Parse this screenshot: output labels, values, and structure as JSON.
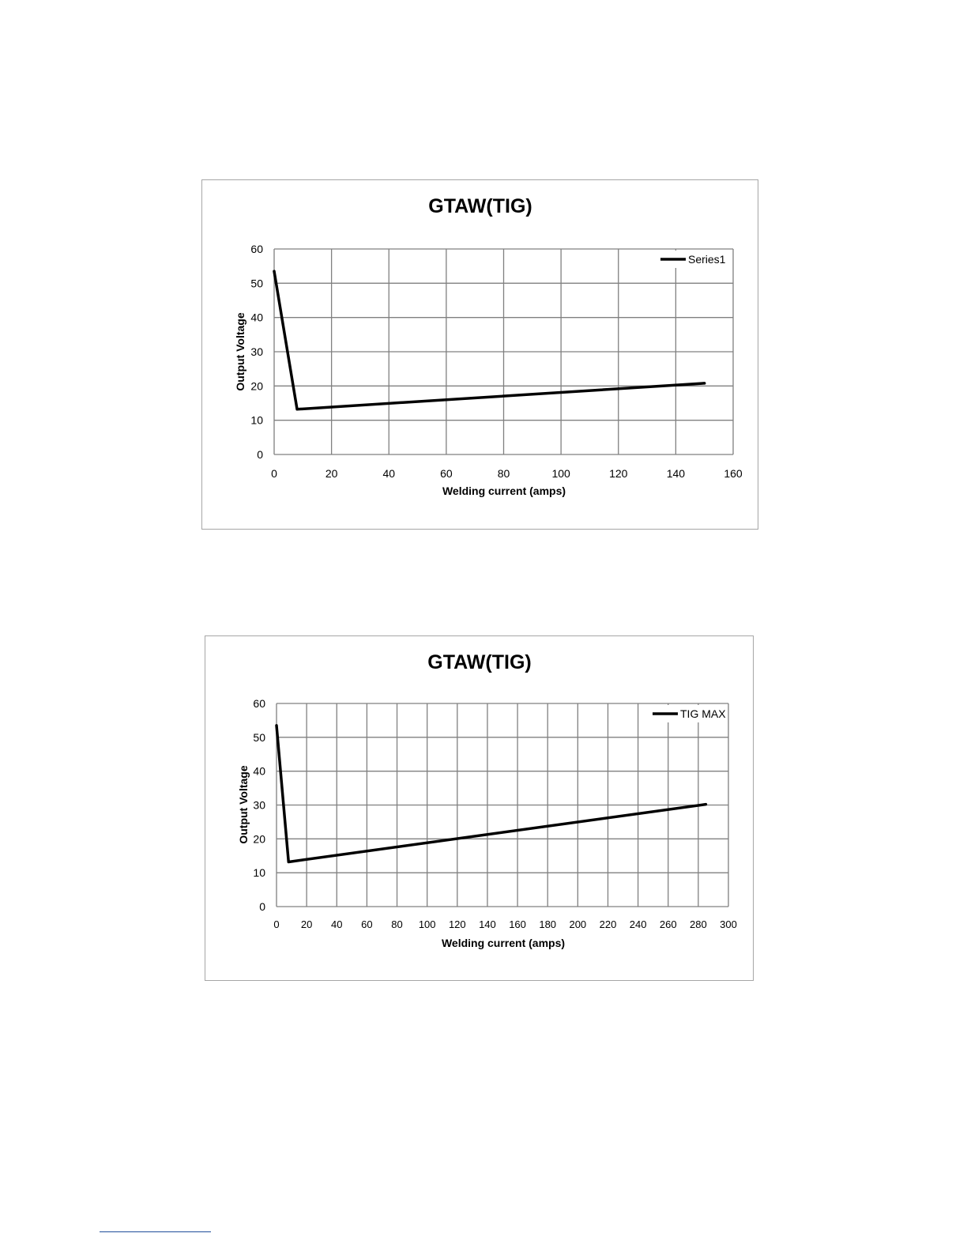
{
  "chart_data": [
    {
      "type": "line",
      "title": "GTAW(TIG)",
      "xlabel": "Welding current (amps)",
      "ylabel": "Output Voltage",
      "xlim": [
        0,
        160
      ],
      "ylim": [
        0,
        60
      ],
      "x_ticks": [
        0,
        20,
        40,
        60,
        80,
        100,
        120,
        140,
        160
      ],
      "y_ticks": [
        0,
        10,
        20,
        30,
        40,
        50,
        60
      ],
      "grid": true,
      "legend_position": "top-right",
      "series": [
        {
          "name": "Series1",
          "x": [
            0,
            8,
            150
          ],
          "y": [
            53.5,
            13.2,
            20.8
          ]
        }
      ]
    },
    {
      "type": "line",
      "title": "GTAW(TIG)",
      "xlabel": "Welding current (amps)",
      "ylabel": "Output Voltage",
      "xlim": [
        0,
        300
      ],
      "ylim": [
        0,
        60
      ],
      "x_ticks": [
        0,
        20,
        40,
        60,
        80,
        100,
        120,
        140,
        160,
        180,
        200,
        220,
        240,
        260,
        280,
        300
      ],
      "y_ticks": [
        0,
        10,
        20,
        30,
        40,
        50,
        60
      ],
      "grid": true,
      "legend_position": "top-right",
      "series": [
        {
          "name": "TIG MAX",
          "x": [
            0,
            8,
            285
          ],
          "y": [
            53.5,
            13.2,
            30.2
          ]
        }
      ]
    }
  ],
  "colors": {
    "line": "#000000",
    "grid": "#808080",
    "frame": "#a6a6a6",
    "text": "#000000",
    "footnote_rule": "#1f4e9a"
  }
}
